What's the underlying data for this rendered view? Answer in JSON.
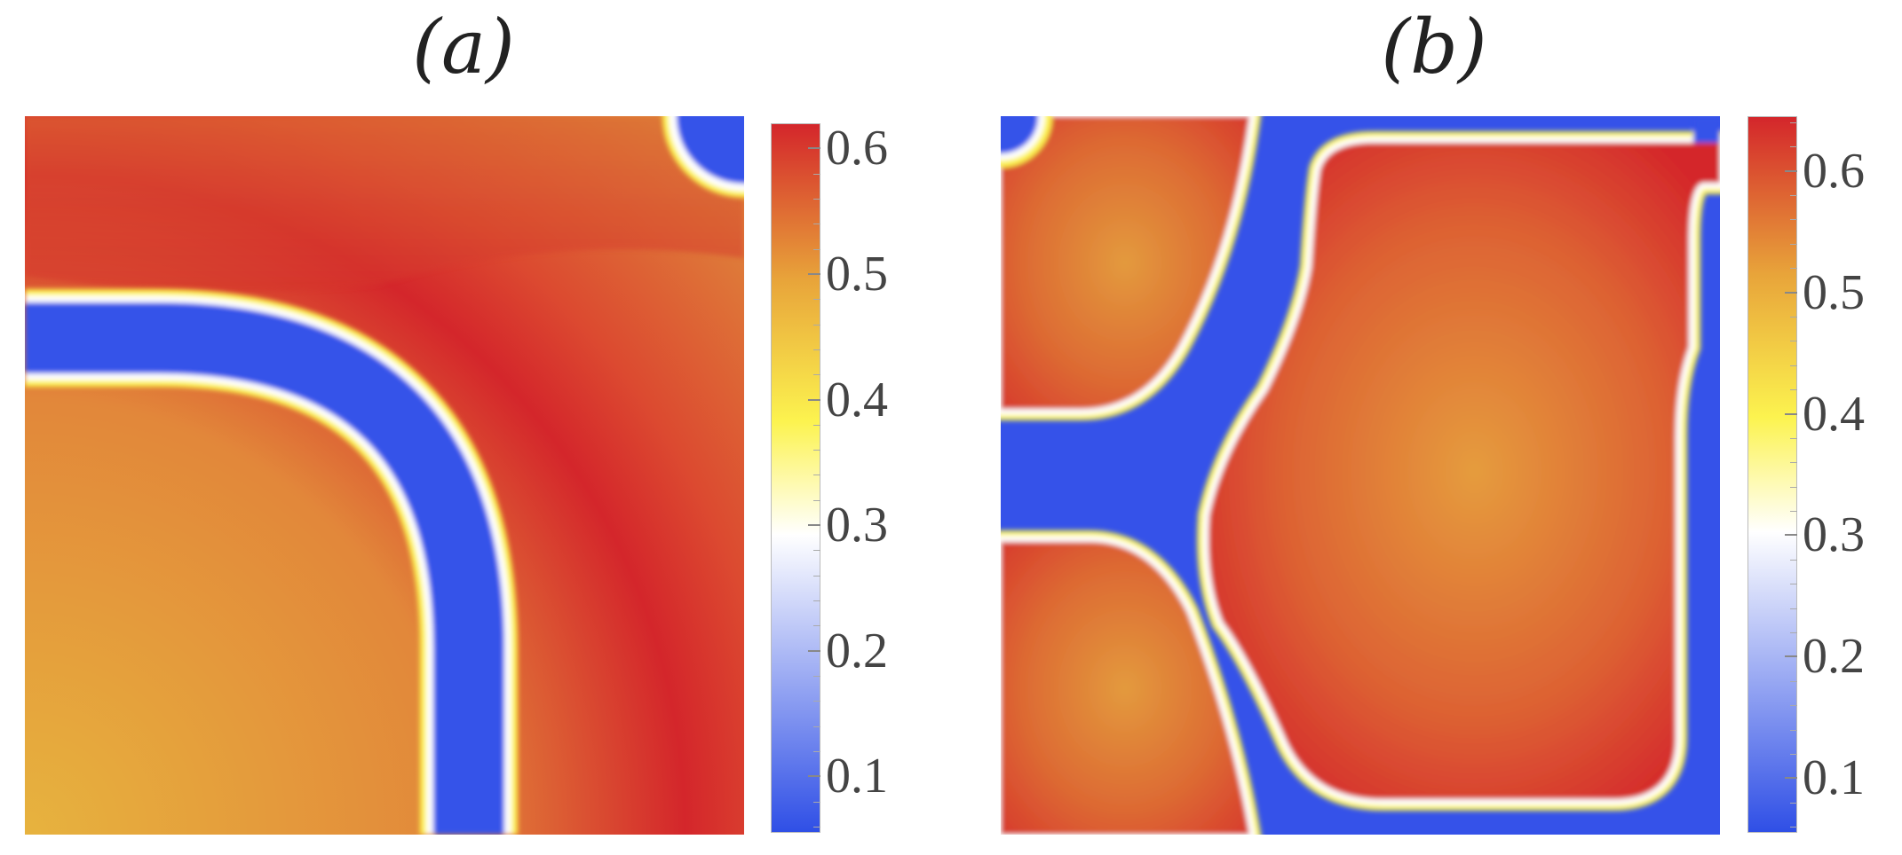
{
  "chart_data": [
    {
      "type": "heatmap",
      "panel_label": "(a)",
      "colorbar": {
        "ticks": [
          "0.1",
          "0.2",
          "0.3",
          "0.4",
          "0.5",
          "0.6"
        ],
        "range": [
          0.055,
          0.62
        ]
      },
      "colormap": [
        "#2f4fe6",
        "#ffffff",
        "#fcf34f",
        "#e8a43a",
        "#d4262b"
      ]
    },
    {
      "type": "heatmap",
      "panel_label": "(b)",
      "colorbar": {
        "ticks": [
          "0.1",
          "0.2",
          "0.3",
          "0.4",
          "0.5",
          "0.6"
        ],
        "range": [
          0.055,
          0.645
        ]
      },
      "colormap": [
        "#2f4fe6",
        "#ffffff",
        "#fcf34f",
        "#e8a43a",
        "#d4262b"
      ]
    }
  ]
}
